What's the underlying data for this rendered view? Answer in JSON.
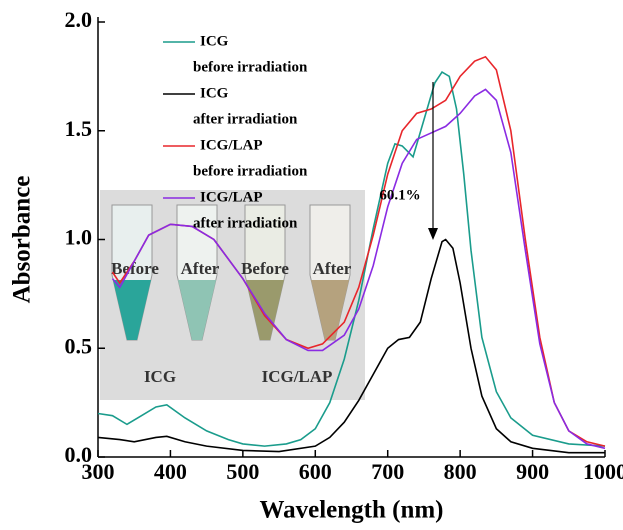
{
  "chart_data": {
    "type": "line",
    "x_label": "Wavelength (nm)",
    "y_label": "Absorbance",
    "xlim": [
      300,
      1000
    ],
    "ylim": [
      0,
      2
    ],
    "xticks": [
      300,
      400,
      500,
      600,
      700,
      800,
      900,
      1000
    ],
    "yticks": [
      {
        "value": 0,
        "label": "0.0"
      },
      {
        "value": 0.5,
        "label": "0.5"
      },
      {
        "value": 1,
        "label": "1.0"
      },
      {
        "value": 1.5,
        "label": "1.5"
      },
      {
        "value": 2,
        "label": "2.0"
      }
    ],
    "annotation": "60.1%",
    "inset": {
      "tube_labels": [
        "Before",
        "After",
        "Before",
        "After"
      ],
      "group_labels": [
        "ICG",
        "ICG/LAP"
      ]
    },
    "series": [
      {
        "name": "ICG",
        "label2": "before irradiation",
        "color": "#1a9c8c",
        "x": [
          300,
          320,
          340,
          360,
          380,
          395,
          420,
          450,
          480,
          500,
          530,
          560,
          580,
          600,
          620,
          640,
          660,
          680,
          700,
          710,
          720,
          735,
          750,
          765,
          775,
          785,
          795,
          805,
          815,
          830,
          850,
          870,
          900,
          950,
          1000
        ],
        "values": [
          0.2,
          0.19,
          0.15,
          0.19,
          0.23,
          0.24,
          0.18,
          0.12,
          0.08,
          0.06,
          0.05,
          0.06,
          0.08,
          0.13,
          0.25,
          0.45,
          0.72,
          1.05,
          1.35,
          1.44,
          1.43,
          1.38,
          1.55,
          1.72,
          1.77,
          1.75,
          1.6,
          1.3,
          0.95,
          0.55,
          0.3,
          0.18,
          0.1,
          0.06,
          0.05
        ]
      },
      {
        "name": "ICG",
        "label2": "after irradiation",
        "color": "#000000",
        "x": [
          300,
          330,
          350,
          380,
          395,
          420,
          450,
          500,
          550,
          600,
          620,
          640,
          660,
          680,
          700,
          715,
          730,
          745,
          760,
          775,
          780,
          790,
          800,
          815,
          830,
          850,
          870,
          900,
          950,
          1000
        ],
        "values": [
          0.09,
          0.08,
          0.07,
          0.09,
          0.095,
          0.07,
          0.05,
          0.03,
          0.025,
          0.05,
          0.09,
          0.16,
          0.26,
          0.38,
          0.5,
          0.54,
          0.55,
          0.62,
          0.82,
          0.99,
          1.0,
          0.96,
          0.8,
          0.5,
          0.28,
          0.13,
          0.07,
          0.04,
          0.02,
          0.02
        ]
      },
      {
        "name": "ICG/LAP",
        "label2": "before irradiation",
        "color": "#e8262b",
        "x": [
          320,
          330,
          350,
          370,
          400,
          430,
          460,
          500,
          530,
          560,
          590,
          610,
          640,
          660,
          680,
          700,
          720,
          740,
          760,
          780,
          800,
          820,
          835,
          850,
          870,
          890,
          910,
          930,
          950,
          975,
          1000
        ],
        "values": [
          0.85,
          0.8,
          0.9,
          1.02,
          1.07,
          1.06,
          1.0,
          0.82,
          0.65,
          0.54,
          0.5,
          0.52,
          0.62,
          0.78,
          1.02,
          1.3,
          1.5,
          1.58,
          1.6,
          1.64,
          1.75,
          1.82,
          1.84,
          1.78,
          1.5,
          1.0,
          0.55,
          0.25,
          0.12,
          0.07,
          0.05
        ]
      },
      {
        "name": "ICG/LAP",
        "label2": "after irradiation",
        "color": "#8a2be2",
        "x": [
          320,
          330,
          350,
          370,
          400,
          430,
          460,
          500,
          530,
          560,
          590,
          610,
          640,
          660,
          680,
          700,
          720,
          740,
          760,
          780,
          800,
          820,
          835,
          850,
          870,
          890,
          910,
          930,
          950,
          975,
          1000
        ],
        "values": [
          0.82,
          0.78,
          0.9,
          1.02,
          1.07,
          1.06,
          1.0,
          0.82,
          0.66,
          0.54,
          0.49,
          0.49,
          0.56,
          0.68,
          0.88,
          1.15,
          1.35,
          1.46,
          1.49,
          1.52,
          1.58,
          1.66,
          1.69,
          1.64,
          1.4,
          0.95,
          0.52,
          0.25,
          0.12,
          0.06,
          0.04
        ]
      }
    ]
  }
}
